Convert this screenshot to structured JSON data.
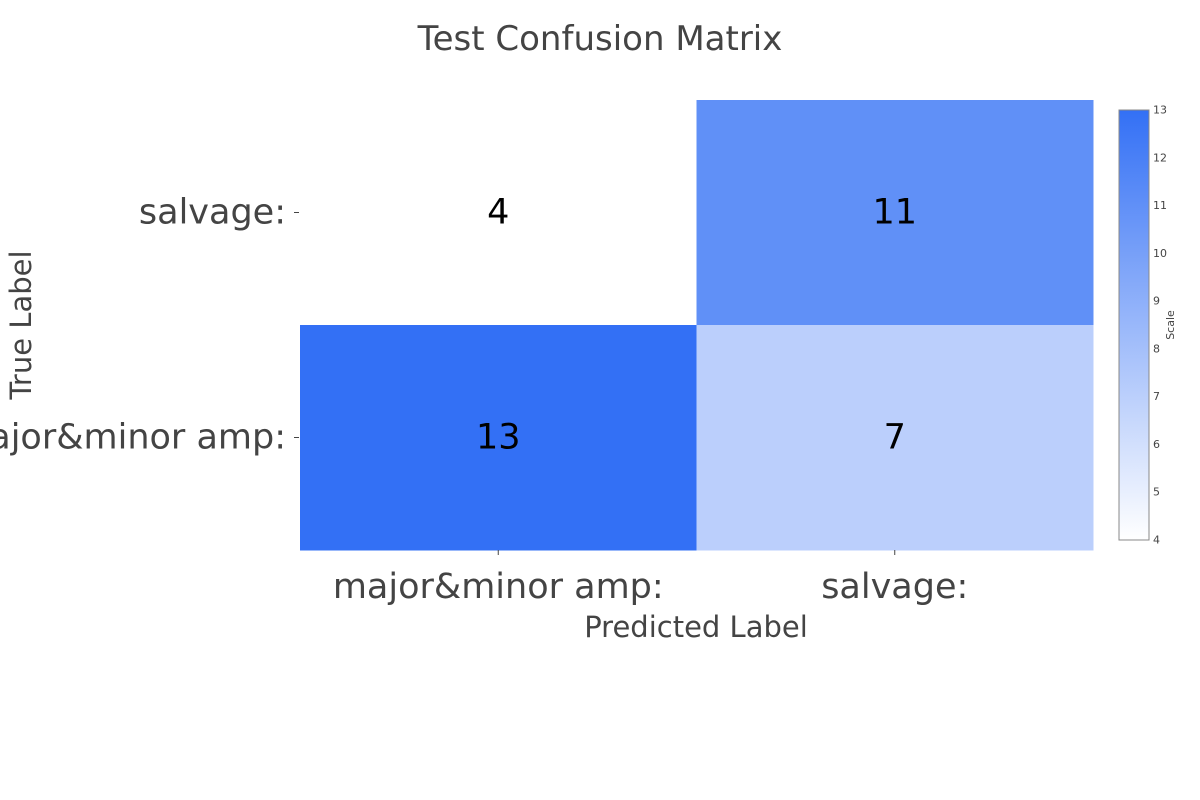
{
  "chart_data": {
    "type": "heatmap",
    "title": "Test Confusion Matrix",
    "xlabel": "Predicted Label",
    "ylabel": "True Label",
    "x_categories": [
      "major&minor amp:",
      "salvage:"
    ],
    "y_categories": [
      "salvage:",
      "major&minor amp:"
    ],
    "values": [
      [
        4,
        11
      ],
      [
        13,
        7
      ]
    ],
    "colorbar": {
      "title": "Scale",
      "min": 4,
      "max": 13,
      "ticks": [
        "4",
        "5",
        "6",
        "7",
        "8",
        "9",
        "10",
        "11",
        "12",
        "13"
      ],
      "color_low": "#ffffff",
      "color_high": "#3370f5"
    }
  }
}
